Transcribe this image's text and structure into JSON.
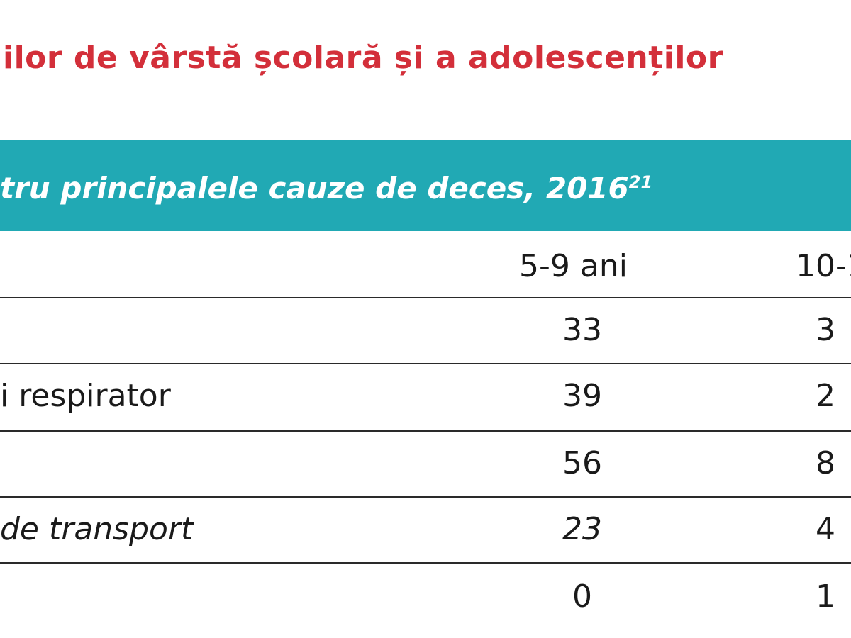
{
  "title": "ilor de vârstă școlară și a adolescenților",
  "table_caption": {
    "text": "tru principalele cauze de deces, 2016",
    "footnote": "21"
  },
  "table": {
    "columns": [
      "",
      "5-9 ani",
      "10-1"
    ],
    "rows": [
      {
        "label": "",
        "col1": "33",
        "col2": "3"
      },
      {
        "label": "i respirator",
        "col1": "39",
        "col2": "2"
      },
      {
        "label": "",
        "col1": "56",
        "col2": "8"
      },
      {
        "label": "de transport",
        "col1": "23",
        "col2": "4"
      },
      {
        "label": "",
        "col1": "0",
        "col2": "1"
      }
    ]
  },
  "colors": {
    "title": "#d32f3a",
    "banner": "#21a9b4",
    "banner_text": "#ffffff",
    "rule": "#2a2a2a"
  }
}
